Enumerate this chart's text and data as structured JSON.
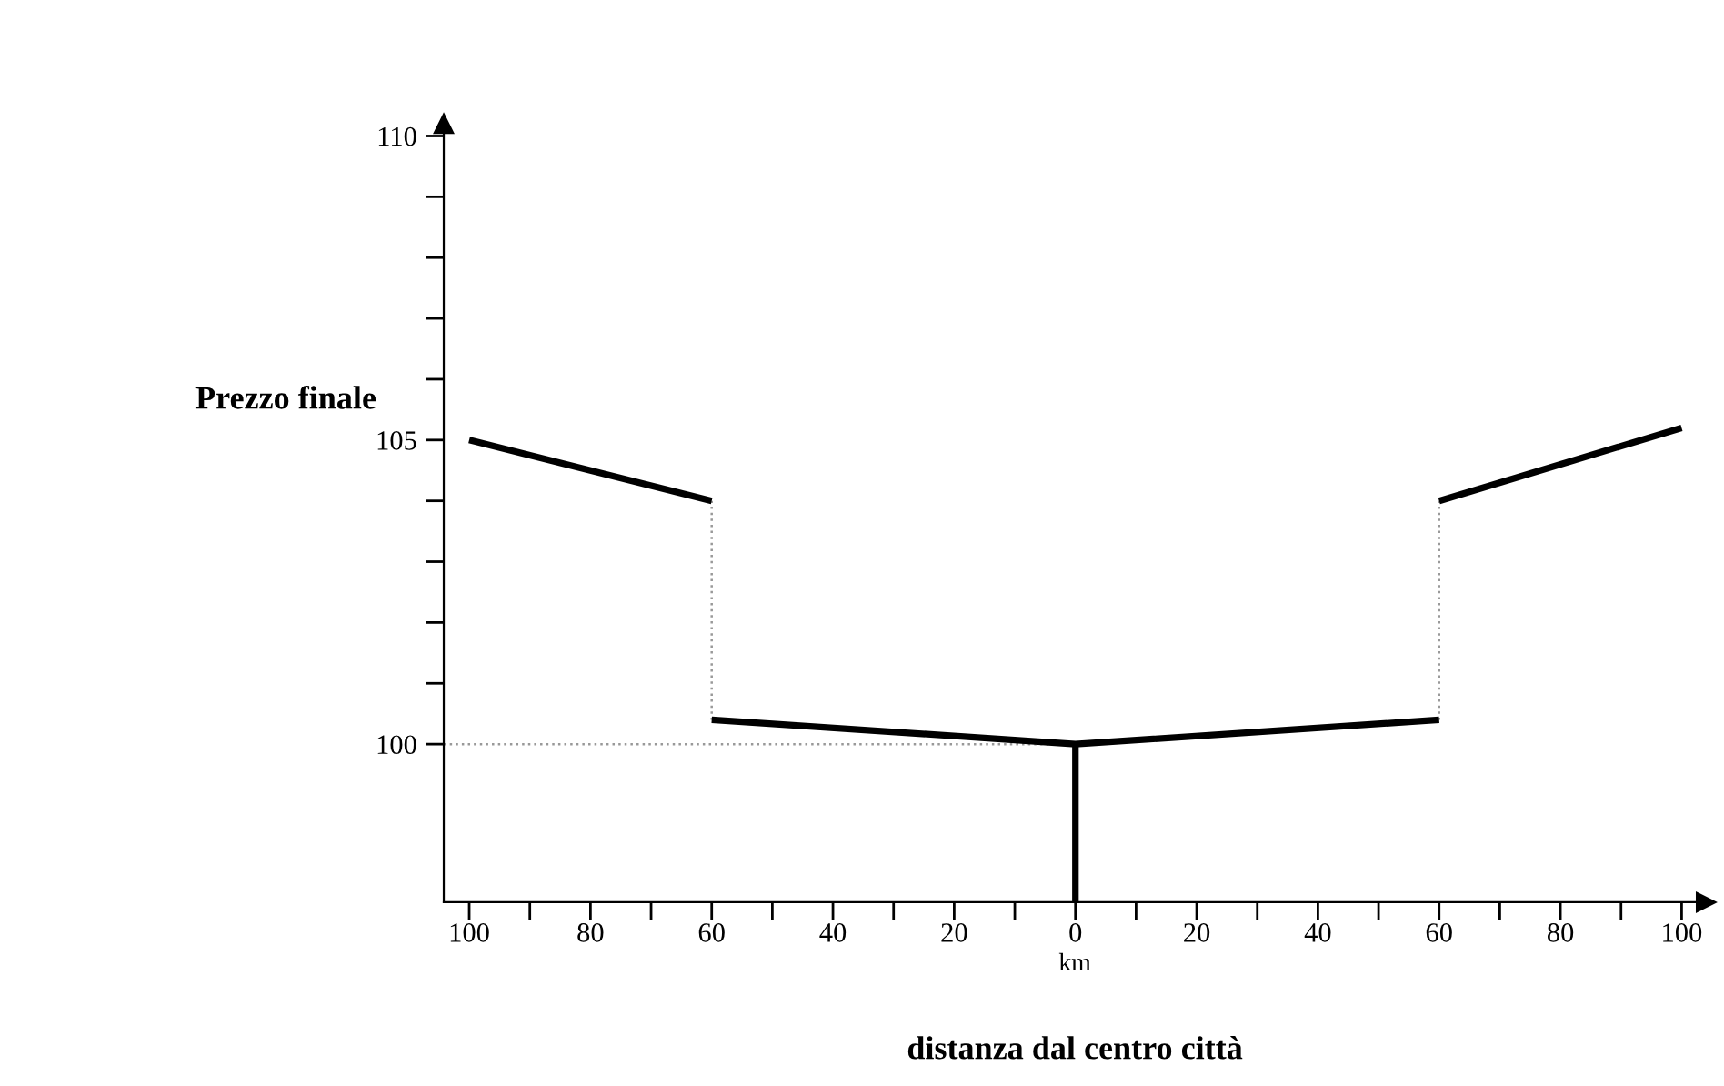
{
  "chart_data": {
    "type": "line",
    "ylabel": "Prezzo finale",
    "xlabel": "distanza dal centro città",
    "annotations": [
      "km"
    ],
    "xlim": [
      -104.2,
      104
    ],
    "ylim": [
      97.4,
      110.2
    ],
    "xticks": [
      {
        "value": -100,
        "label": "100"
      },
      {
        "value": -90,
        "label": null
      },
      {
        "value": -80,
        "label": "80"
      },
      {
        "value": -70,
        "label": null
      },
      {
        "value": -60,
        "label": "60"
      },
      {
        "value": -50,
        "label": null
      },
      {
        "value": -40,
        "label": "40"
      },
      {
        "value": -30,
        "label": null
      },
      {
        "value": -20,
        "label": "20"
      },
      {
        "value": -10,
        "label": null
      },
      0,
      {
        "value": 10,
        "label": null
      },
      {
        "value": 20,
        "label": "20"
      },
      {
        "value": 30,
        "label": null
      },
      {
        "value": 40,
        "label": "40"
      },
      {
        "value": 50,
        "label": null
      },
      {
        "value": 60,
        "label": "60"
      },
      {
        "value": 70,
        "label": null
      },
      {
        "value": 80,
        "label": "80"
      },
      {
        "value": 90,
        "label": null
      },
      {
        "value": 100,
        "label": "100"
      }
    ],
    "yticks": [
      100,
      {
        "value": 101,
        "label": null
      },
      {
        "value": 102,
        "label": null
      },
      {
        "value": 103,
        "label": null
      },
      {
        "value": 104,
        "label": null
      },
      105,
      {
        "value": 106,
        "label": null
      },
      {
        "value": 107,
        "label": null
      },
      {
        "value": 108,
        "label": null
      },
      {
        "value": 109,
        "label": null
      },
      110
    ],
    "grid": false,
    "legend": false,
    "marker": "none",
    "series": [
      {
        "color": "#000000",
        "x": [
          -100,
          -60
        ],
        "values": [
          105,
          104.0
        ]
      },
      {
        "color": "#000000",
        "x": [
          -60,
          0,
          60
        ],
        "values": [
          100.4,
          100,
          100.4
        ]
      },
      {
        "color": "#000000",
        "x": [
          60,
          100
        ],
        "values": [
          104.0,
          105.2
        ]
      },
      {
        "color": "#000000",
        "x": [
          0,
          0
        ],
        "values": [
          97.4,
          100
        ]
      },
      {
        "color": "#999999",
        "line_style": "dotted",
        "x": [
          -60,
          -60
        ],
        "values": [
          100.4,
          104.0
        ]
      },
      {
        "color": "#999999",
        "line_style": "dotted",
        "x": [
          60,
          60
        ],
        "values": [
          100.4,
          104.0
        ]
      },
      {
        "color": "#999999",
        "line_style": "dotted",
        "x": [
          -104.2,
          0
        ],
        "values": [
          100,
          100
        ]
      }
    ]
  }
}
